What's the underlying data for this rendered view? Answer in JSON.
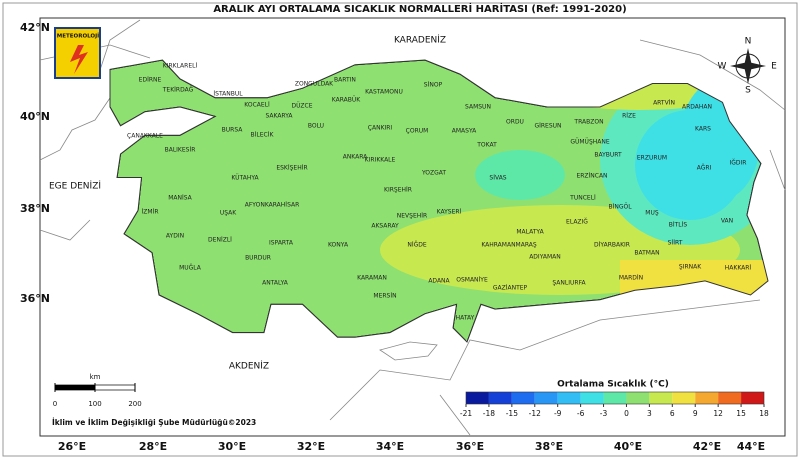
{
  "title": "ARALIK AYI ORTALAMA SICAKLIK NORMALLERİ HARİTASI (Ref: 1991-2020)",
  "logo": "METEOROLOJİ",
  "compass": {
    "n": "N",
    "e": "E",
    "s": "S",
    "w": "W"
  },
  "seas": [
    "KARADENİZ",
    "EGE DENİZİ",
    "AKDENİZ"
  ],
  "lat_labels": [
    "42°N",
    "40°N",
    "38°N",
    "36°N"
  ],
  "lon_labels": [
    "26°E",
    "28°E",
    "30°E",
    "32°E",
    "34°E",
    "36°E",
    "38°E",
    "40°E",
    "42°E",
    "44°E"
  ],
  "provinces": [
    "KIRKLARELİ",
    "EDİRNE",
    "TEKİRDAĞ",
    "İSTANBUL",
    "KOCAELİ",
    "SAKARYA",
    "DÜZCE",
    "ZONGULDAK",
    "BARTIN",
    "KARABÜK",
    "KASTAMONU",
    "SİNOP",
    "SAMSUN",
    "ORDU",
    "GİRESUN",
    "TRABZON",
    "RİZE",
    "ARTVİN",
    "ARDAHAN",
    "KARS",
    "IĞDIR",
    "AĞRI",
    "ERZURUM",
    "BAYBURT",
    "GÜMÜŞHANE",
    "ERZİNCAN",
    "TUNCELİ",
    "BİNGÖL",
    "MUŞ",
    "VAN",
    "BİTLİS",
    "SİİRT",
    "HAKKARİ",
    "ŞIRNAK",
    "BATMAN",
    "MARDİN",
    "DİYARBAKIR",
    "ELAZIĞ",
    "MALATYA",
    "ADIYAMAN",
    "ŞANLIURFA",
    "GAZİANTEP",
    "KAHRAMANMARAŞ",
    "OSMANİYE",
    "ADANA",
    "HATAY",
    "MERSİN",
    "KARAMAN",
    "KONYA",
    "NİĞDE",
    "AKSARAY",
    "NEVŞEHİR",
    "KAYSERİ",
    "KIRŞEHİR",
    "YOZGAT",
    "SİVAS",
    "TOKAT",
    "AMASYA",
    "ÇORUM",
    "ÇANKIRI",
    "KIRIKKALE",
    "ANKARA",
    "BOLU",
    "BİLECİK",
    "ESKİŞEHİR",
    "KÜTAHYA",
    "AFYONKARAHİSAR",
    "UŞAK",
    "DENİZLİ",
    "ISPARTA",
    "BURDUR",
    "ANTALYA",
    "MUĞLA",
    "AYDIN",
    "İZMİR",
    "MANİSA",
    "BALIKESİR",
    "BURSA",
    "ÇANAKKALE"
  ],
  "scale_bar": {
    "unit": "km",
    "ticks": [
      0,
      100,
      200
    ]
  },
  "credit": "İklim ve İklim Değişikliği Şube Müdürlüğü©2023",
  "colorbar": {
    "label": "Ortalama Sıcaklık (°C)",
    "ticks": [
      -21,
      -18,
      -15,
      -12,
      -9,
      -6,
      -3,
      0,
      3,
      6,
      9,
      12,
      15,
      18
    ],
    "colors": [
      "#0a1a9e",
      "#1440d8",
      "#1e6cf0",
      "#2896f5",
      "#32bef5",
      "#3ee0e6",
      "#5ee8a8",
      "#8ee070",
      "#c8e850",
      "#f0e040",
      "#f5a830",
      "#f06a20",
      "#d01818"
    ]
  }
}
